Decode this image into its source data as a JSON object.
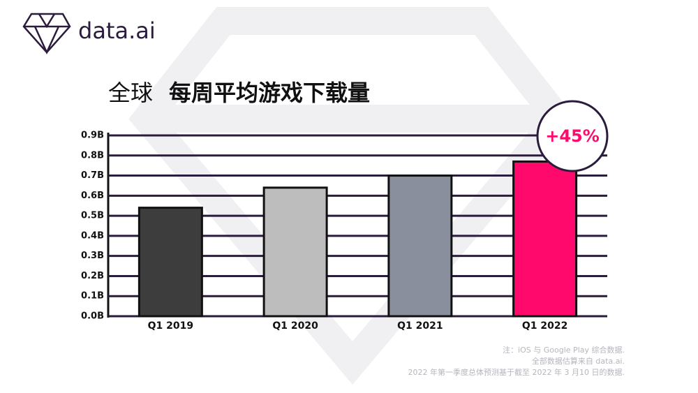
{
  "logo": "data.ai",
  "chart_data": {
    "type": "bar",
    "title_prefix": "全球",
    "title": "每周平均游戏下载量",
    "categories": [
      "Q1 2019",
      "Q1 2020",
      "Q1 2021",
      "Q1 2022"
    ],
    "values": [
      0.54,
      0.64,
      0.7,
      0.77
    ],
    "colors": [
      "#3d3d3d",
      "#bdbdbd",
      "#8a8f9e",
      "#ff0a6c"
    ],
    "ylim": [
      0,
      0.9
    ],
    "yticks": [
      {
        "value": 0,
        "label": "0.0B"
      },
      {
        "value": 0.1,
        "label": "0.1B"
      },
      {
        "value": 0.2,
        "label": "0.2B"
      },
      {
        "value": 0.3,
        "label": "0.3B"
      },
      {
        "value": 0.4,
        "label": "0.4B"
      },
      {
        "value": 0.5,
        "label": "0.5B"
      },
      {
        "value": 0.6,
        "label": "0.6B"
      },
      {
        "value": 0.7,
        "label": "0.7B"
      },
      {
        "value": 0.8,
        "label": "0.8B"
      },
      {
        "value": 0.9,
        "label": "0.9B"
      }
    ],
    "grid": true,
    "annotation": "+45%",
    "footnote": [
      "注：iOS 与 Google Play 综合数据.",
      "全部数据估算来自 data.ai.",
      "2022 年第一季度总体预测基于截至 2022 年 3 月10 日的数据."
    ]
  }
}
